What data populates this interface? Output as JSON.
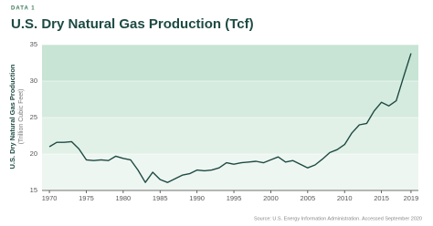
{
  "chart_data": {
    "type": "line",
    "kicker": "DATA 1",
    "title": "U.S. Dry Natural Gas Production (Tcf)",
    "y_label": "U.S. Dry Natural Gas Production",
    "y_label_sub": "(Trillion Cubic Feet)",
    "source": "Source: U.S. Energy Information Administration. Accessed September 2020",
    "x": [
      1970,
      1971,
      1972,
      1973,
      1974,
      1975,
      1976,
      1977,
      1978,
      1979,
      1980,
      1981,
      1982,
      1983,
      1984,
      1985,
      1986,
      1987,
      1988,
      1989,
      1990,
      1991,
      1992,
      1993,
      1994,
      1995,
      1996,
      1997,
      1998,
      1999,
      2000,
      2001,
      2002,
      2003,
      2004,
      2005,
      2006,
      2007,
      2008,
      2009,
      2010,
      2011,
      2012,
      2013,
      2014,
      2015,
      2016,
      2017,
      2018,
      2019
    ],
    "values": [
      21.0,
      21.6,
      21.6,
      21.7,
      20.7,
      19.2,
      19.1,
      19.2,
      19.1,
      19.7,
      19.4,
      19.2,
      17.8,
      16.1,
      17.5,
      16.5,
      16.1,
      16.6,
      17.1,
      17.3,
      17.8,
      17.7,
      17.8,
      18.1,
      18.8,
      18.6,
      18.8,
      18.9,
      19.0,
      18.8,
      19.2,
      19.6,
      18.9,
      19.1,
      18.6,
      18.1,
      18.5,
      19.3,
      20.2,
      20.6,
      21.3,
      22.9,
      24.0,
      24.2,
      25.9,
      27.1,
      26.6,
      27.3,
      30.6,
      33.8
    ],
    "color": "#1d4a43",
    "xlim": [
      1969,
      2020
    ],
    "xticks": [
      1970,
      1975,
      1980,
      1985,
      1990,
      1995,
      2000,
      2005,
      2010,
      2015,
      2019
    ],
    "ylim": [
      15,
      35
    ],
    "yticks": [
      15,
      20,
      25,
      30,
      35
    ]
  }
}
